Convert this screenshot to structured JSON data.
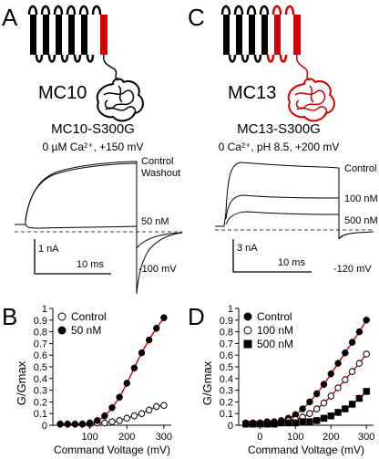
{
  "panels": {
    "A": {
      "letter": "A",
      "construct": "MC10",
      "title": "MC10-S300G",
      "conditions": "0 µM Ca²⁺, +150 mV",
      "trace_labels": [
        "Control",
        "Washout",
        "50 nM"
      ],
      "scale_current": "1 nA",
      "scale_time": "10 ms",
      "tail_voltage": "-100 mV"
    },
    "C": {
      "letter": "C",
      "construct": "MC13",
      "title": "MC13-S300G",
      "conditions": "0 Ca²⁺, pH 8.5, +200 mV",
      "trace_labels": [
        "Control",
        "100 nM",
        "500 nM"
      ],
      "scale_current": "3 nA",
      "scale_time": "10 ms",
      "tail_voltage": "-120 mV"
    }
  },
  "colors": {
    "highlight": "#d40000",
    "fit": "#d40000",
    "trace": "#000000"
  },
  "chart_data": [
    {
      "panel": "B",
      "type": "scatter",
      "ylabel": "G/Gmax",
      "xlabel": "Command Voltage (mV)",
      "xlim": [
        0,
        320
      ],
      "ylim": [
        0,
        1
      ],
      "xticks": [
        100,
        200,
        300
      ],
      "yticks": [
        0,
        0.1,
        0.2,
        0.3,
        0.4,
        0.5,
        0.6,
        0.7,
        0.8,
        0.9,
        1
      ],
      "legend_position": "top-left",
      "series": [
        {
          "name": "Control",
          "marker": "open-circle",
          "x": [
            20,
            40,
            60,
            80,
            100,
            120,
            140,
            160,
            180,
            200,
            220,
            240,
            260,
            280,
            300
          ],
          "y": [
            0.01,
            0.01,
            0.01,
            0.01,
            0.01,
            0.02,
            0.02,
            0.03,
            0.04,
            0.06,
            0.08,
            0.1,
            0.13,
            0.16,
            0.17
          ]
        },
        {
          "name": "50 nM",
          "marker": "filled-circle",
          "x": [
            20,
            40,
            60,
            80,
            100,
            120,
            140,
            160,
            180,
            200,
            220,
            240,
            260,
            280,
            300
          ],
          "y": [
            0.01,
            0.01,
            0.01,
            0.01,
            0.02,
            0.04,
            0.08,
            0.15,
            0.24,
            0.36,
            0.49,
            0.62,
            0.73,
            0.83,
            0.92
          ]
        }
      ]
    },
    {
      "panel": "D",
      "type": "scatter",
      "ylabel": "G/Gmax",
      "xlabel": "Command Voltage (mV)",
      "xlim": [
        -60,
        320
      ],
      "ylim": [
        0,
        1
      ],
      "xticks": [
        0,
        100,
        200,
        300
      ],
      "yticks": [
        0,
        0.1,
        0.2,
        0.3,
        0.4,
        0.5,
        0.6,
        0.7,
        0.8,
        0.9,
        1
      ],
      "legend_position": "top-left",
      "series": [
        {
          "name": "Control",
          "marker": "filled-circle",
          "x": [
            -40,
            -20,
            0,
            20,
            40,
            60,
            80,
            100,
            120,
            140,
            160,
            180,
            200,
            220,
            240,
            260,
            280,
            300
          ],
          "y": [
            0.02,
            0.02,
            0.02,
            0.03,
            0.03,
            0.04,
            0.06,
            0.09,
            0.14,
            0.2,
            0.27,
            0.35,
            0.44,
            0.53,
            0.62,
            0.71,
            0.8,
            0.9
          ]
        },
        {
          "name": "100 nM",
          "marker": "open-circle",
          "x": [
            -40,
            -20,
            0,
            20,
            40,
            60,
            80,
            100,
            120,
            140,
            160,
            180,
            200,
            220,
            240,
            260,
            280,
            300
          ],
          "y": [
            0.01,
            0.01,
            0.02,
            0.02,
            0.02,
            0.03,
            0.04,
            0.05,
            0.07,
            0.1,
            0.14,
            0.19,
            0.25,
            0.32,
            0.39,
            0.46,
            0.53,
            0.61
          ]
        },
        {
          "name": "500 nM",
          "marker": "filled-square",
          "x": [
            -40,
            -20,
            0,
            20,
            40,
            60,
            80,
            100,
            120,
            140,
            160,
            180,
            200,
            220,
            240,
            260,
            280,
            300
          ],
          "y": [
            0.01,
            0.01,
            0.01,
            0.01,
            0.01,
            0.02,
            0.02,
            0.02,
            0.03,
            0.03,
            0.04,
            0.06,
            0.08,
            0.11,
            0.14,
            0.18,
            0.23,
            0.29
          ]
        }
      ]
    }
  ]
}
